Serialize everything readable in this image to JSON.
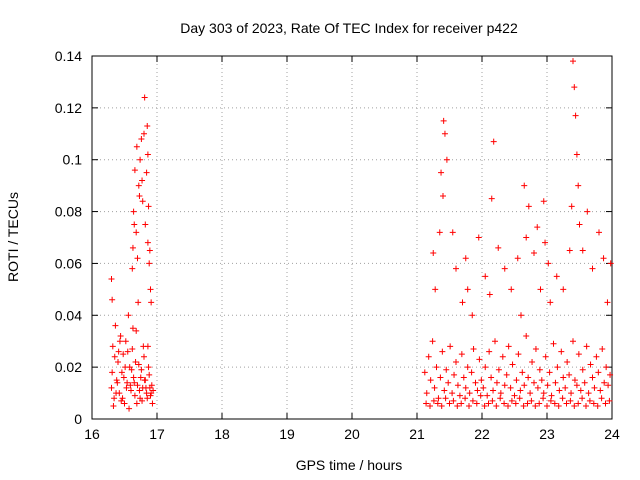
{
  "chart_data": {
    "type": "scatter",
    "title": "Day 303 of 2023, Rate Of TEC Index for receiver p422",
    "xlabel": "GPS time / hours",
    "ylabel": "ROTI / TECUs",
    "xlim": [
      16,
      24
    ],
    "ylim": [
      0,
      0.14
    ],
    "x_ticks": [
      "16",
      "17",
      "18",
      "19",
      "20",
      "21",
      "22",
      "23",
      "24"
    ],
    "y_ticks": [
      "0",
      "0.02",
      "0.04",
      "0.06",
      "0.08",
      "0.1",
      "0.12",
      "0.14"
    ],
    "grid": true,
    "marker": "+",
    "color": "#ff0000",
    "series": [
      {
        "x": [
          16.3,
          16.32,
          16.34,
          16.36,
          16.38,
          16.4,
          16.42,
          16.44,
          16.46,
          16.48,
          16.5,
          16.52,
          16.54,
          16.56,
          16.58,
          16.6,
          16.62,
          16.64,
          16.66,
          16.68,
          16.7,
          16.72,
          16.74,
          16.76,
          16.78,
          16.8,
          16.82,
          16.84,
          16.86,
          16.88,
          16.9,
          16.92,
          16.94,
          16.31,
          16.35,
          16.39,
          16.43,
          16.47,
          16.51,
          16.55,
          16.59,
          16.63,
          16.67,
          16.71,
          16.75,
          16.79,
          16.83,
          16.87,
          16.91,
          16.33,
          16.37,
          16.41,
          16.45,
          16.49,
          16.53,
          16.57,
          16.61,
          16.65,
          16.69,
          16.73,
          16.77,
          16.81,
          16.85,
          16.89,
          16.93,
          16.62,
          16.64,
          16.66,
          16.68,
          16.7,
          16.72,
          16.74,
          16.76,
          16.78,
          16.8,
          16.82,
          16.84,
          16.86,
          16.88,
          16.9,
          16.3,
          16.31,
          16.63,
          16.65,
          16.69,
          16.73,
          16.77,
          16.81,
          16.85,
          16.86,
          16.87,
          16.89,
          16.91,
          21.12,
          21.15,
          21.18,
          21.21,
          21.24,
          21.27,
          21.3,
          21.33,
          21.36,
          21.39,
          21.42,
          21.45,
          21.48,
          21.51,
          21.54,
          21.57,
          21.6,
          21.63,
          21.66,
          21.69,
          21.72,
          21.75,
          21.78,
          21.81,
          21.84,
          21.87,
          21.9,
          21.93,
          21.96,
          21.99,
          22.02,
          22.05,
          22.08,
          22.11,
          22.14,
          22.17,
          22.2,
          22.23,
          22.26,
          22.29,
          22.32,
          22.35,
          22.38,
          22.41,
          22.44,
          22.47,
          22.5,
          22.53,
          22.56,
          22.59,
          22.62,
          22.65,
          22.68,
          22.71,
          22.74,
          22.77,
          22.8,
          22.83,
          22.86,
          22.89,
          22.92,
          22.95,
          22.98,
          23.01,
          23.04,
          23.07,
          23.1,
          23.13,
          23.16,
          23.19,
          23.22,
          23.25,
          23.28,
          23.31,
          23.34,
          23.37,
          23.4,
          23.43,
          23.46,
          23.49,
          23.52,
          23.55,
          23.58,
          23.61,
          23.64,
          23.67,
          23.7,
          23.73,
          23.76,
          23.79,
          23.82,
          23.85,
          23.88,
          23.91,
          23.94,
          23.97,
          21.14,
          21.2,
          21.26,
          21.32,
          21.38,
          21.44,
          21.5,
          21.56,
          21.62,
          21.68,
          21.74,
          21.8,
          21.86,
          21.92,
          21.98,
          22.04,
          22.1,
          22.16,
          22.22,
          22.28,
          22.34,
          22.4,
          22.46,
          22.52,
          22.58,
          22.64,
          22.7,
          22.76,
          22.82,
          22.88,
          22.94,
          23.0,
          23.06,
          23.12,
          23.18,
          23.24,
          23.3,
          23.36,
          23.42,
          23.48,
          23.54,
          23.6,
          23.66,
          23.72,
          23.78,
          23.84,
          23.9,
          23.96,
          21.25,
          21.28,
          21.35,
          21.37,
          21.4,
          21.41,
          21.43,
          21.46,
          21.55,
          21.6,
          21.7,
          21.75,
          21.78,
          21.85,
          21.95,
          22.05,
          22.12,
          22.15,
          22.18,
          22.25,
          22.35,
          22.45,
          22.55,
          22.6,
          22.65,
          22.68,
          22.72,
          22.8,
          22.85,
          22.9,
          22.95,
          22.97,
          23.02,
          23.05,
          23.15,
          23.25,
          23.35,
          23.38,
          23.4,
          23.42,
          23.44,
          23.46,
          23.48,
          23.5,
          23.55,
          23.62,
          23.7,
          23.8,
          23.87,
          23.93,
          23.98
        ],
        "y": [
          0.012,
          0.028,
          0.008,
          0.036,
          0.015,
          0.022,
          0.01,
          0.032,
          0.018,
          0.025,
          0.006,
          0.03,
          0.014,
          0.04,
          0.02,
          0.011,
          0.027,
          0.016,
          0.009,
          0.034,
          0.013,
          0.021,
          0.008,
          0.019,
          0.012,
          0.024,
          0.015,
          0.01,
          0.028,
          0.017,
          0.009,
          0.013,
          0.011,
          0.018,
          0.024,
          0.014,
          0.03,
          0.008,
          0.02,
          0.026,
          0.013,
          0.035,
          0.022,
          0.045,
          0.016,
          0.028,
          0.012,
          0.02,
          0.01,
          0.005,
          0.01,
          0.026,
          0.007,
          0.016,
          0.012,
          0.004,
          0.019,
          0.014,
          0.006,
          0.011,
          0.007,
          0.015,
          0.008,
          0.012,
          0.006,
          0.058,
          0.08,
          0.096,
          0.072,
          0.062,
          0.09,
          0.1,
          0.108,
          0.084,
          0.11,
          0.075,
          0.095,
          0.068,
          0.06,
          0.05,
          0.054,
          0.046,
          0.066,
          0.075,
          0.105,
          0.086,
          0.092,
          0.124,
          0.113,
          0.102,
          0.082,
          0.065,
          0.045,
          0.018,
          0.01,
          0.024,
          0.015,
          0.03,
          0.012,
          0.02,
          0.008,
          0.016,
          0.026,
          0.011,
          0.019,
          0.014,
          0.028,
          0.01,
          0.017,
          0.022,
          0.013,
          0.009,
          0.025,
          0.016,
          0.012,
          0.02,
          0.01,
          0.018,
          0.027,
          0.014,
          0.011,
          0.023,
          0.015,
          0.012,
          0.02,
          0.009,
          0.026,
          0.016,
          0.011,
          0.03,
          0.014,
          0.019,
          0.01,
          0.024,
          0.013,
          0.017,
          0.028,
          0.012,
          0.021,
          0.009,
          0.015,
          0.025,
          0.011,
          0.018,
          0.013,
          0.032,
          0.016,
          0.01,
          0.022,
          0.014,
          0.027,
          0.012,
          0.019,
          0.015,
          0.01,
          0.024,
          0.013,
          0.018,
          0.009,
          0.029,
          0.014,
          0.02,
          0.011,
          0.026,
          0.016,
          0.012,
          0.022,
          0.017,
          0.01,
          0.03,
          0.015,
          0.013,
          0.025,
          0.011,
          0.019,
          0.014,
          0.028,
          0.01,
          0.021,
          0.016,
          0.012,
          0.024,
          0.018,
          0.011,
          0.027,
          0.014,
          0.02,
          0.013,
          0.017,
          0.006,
          0.005,
          0.007,
          0.006,
          0.005,
          0.008,
          0.006,
          0.007,
          0.005,
          0.006,
          0.008,
          0.005,
          0.007,
          0.006,
          0.009,
          0.005,
          0.006,
          0.007,
          0.005,
          0.008,
          0.006,
          0.005,
          0.007,
          0.006,
          0.008,
          0.005,
          0.006,
          0.007,
          0.005,
          0.006,
          0.008,
          0.005,
          0.007,
          0.006,
          0.005,
          0.008,
          0.006,
          0.007,
          0.005,
          0.006,
          0.008,
          0.005,
          0.007,
          0.006,
          0.005,
          0.008,
          0.006,
          0.007,
          0.064,
          0.05,
          0.072,
          0.095,
          0.086,
          0.115,
          0.11,
          0.1,
          0.072,
          0.058,
          0.045,
          0.062,
          0.05,
          0.04,
          0.07,
          0.055,
          0.048,
          0.085,
          0.107,
          0.066,
          0.058,
          0.05,
          0.062,
          0.04,
          0.09,
          0.07,
          0.082,
          0.064,
          0.074,
          0.05,
          0.084,
          0.068,
          0.06,
          0.045,
          0.055,
          0.05,
          0.065,
          0.082,
          0.138,
          0.128,
          0.117,
          0.102,
          0.09,
          0.075,
          0.065,
          0.08,
          0.058,
          0.072,
          0.062,
          0.045,
          0.06
        ]
      }
    ]
  }
}
